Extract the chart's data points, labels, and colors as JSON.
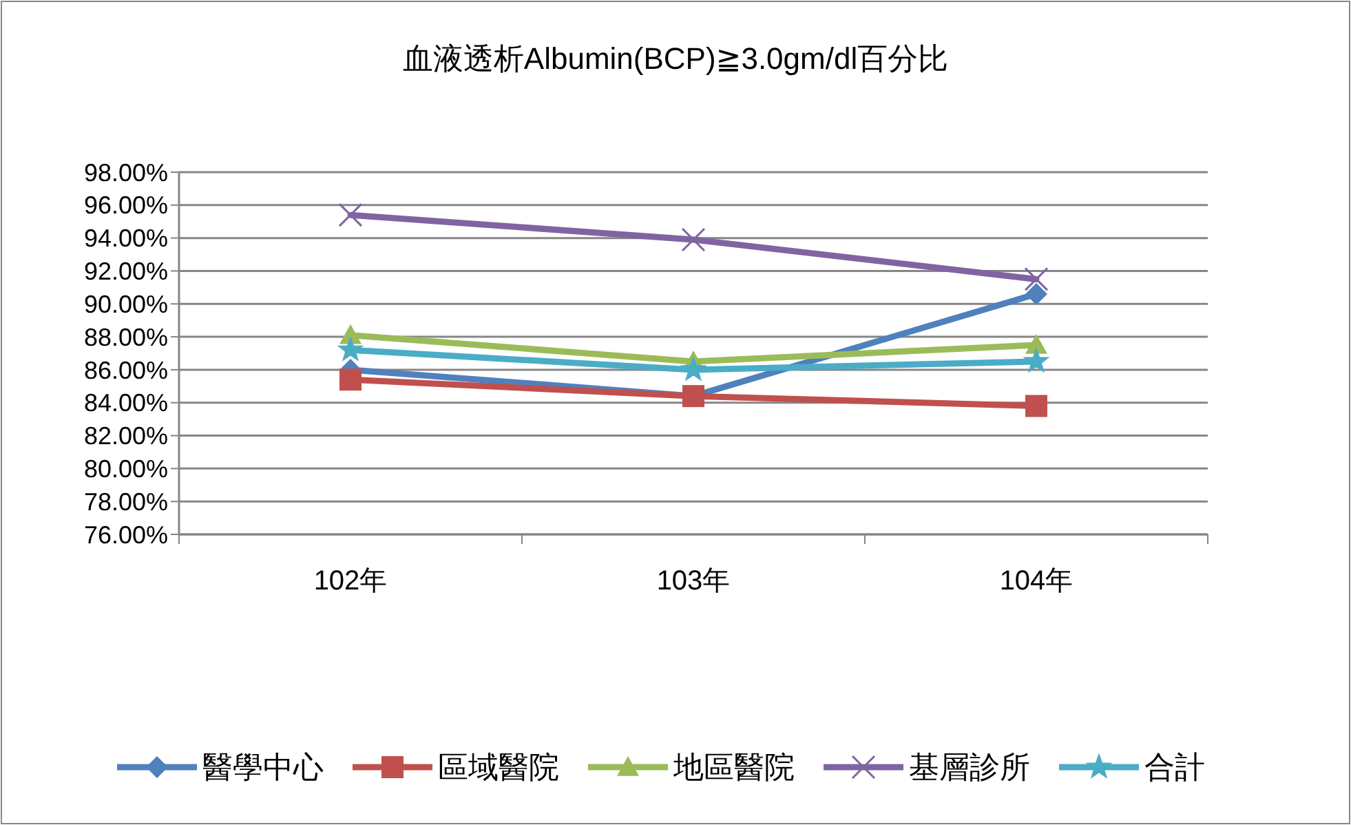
{
  "chart_data": {
    "type": "line",
    "title": "血液透析Albumin(BCP)≧3.0gm/dl百分比",
    "categories": [
      "102年",
      "103年",
      "104年"
    ],
    "series": [
      {
        "name": "醫學中心",
        "color": "#4f81bd",
        "marker": "diamond",
        "values": [
          86.0,
          84.4,
          90.6
        ]
      },
      {
        "name": "區域醫院",
        "color": "#c0504d",
        "marker": "square",
        "values": [
          85.4,
          84.4,
          83.8
        ]
      },
      {
        "name": "地區醫院",
        "color": "#9bbb59",
        "marker": "triangle",
        "values": [
          88.1,
          86.5,
          87.5
        ]
      },
      {
        "name": "基層診所",
        "color": "#8064a2",
        "marker": "cross",
        "values": [
          95.4,
          93.9,
          91.5
        ]
      },
      {
        "name": "合計",
        "color": "#4bacc6",
        "marker": "star",
        "values": [
          87.2,
          86.0,
          86.5
        ]
      }
    ],
    "ylim": [
      76,
      98
    ],
    "yticks": [
      {
        "value": 76,
        "label": "76.00%"
      },
      {
        "value": 78,
        "label": "78.00%"
      },
      {
        "value": 80,
        "label": "80.00%"
      },
      {
        "value": 82,
        "label": "82.00%"
      },
      {
        "value": 84,
        "label": "84.00%"
      },
      {
        "value": 86,
        "label": "86.00%"
      },
      {
        "value": 88,
        "label": "88.00%"
      },
      {
        "value": 90,
        "label": "90.00%"
      },
      {
        "value": 92,
        "label": "92.00%"
      },
      {
        "value": 94,
        "label": "94.00%"
      },
      {
        "value": 96,
        "label": "96.00%"
      },
      {
        "value": 98,
        "label": "98.00%"
      }
    ],
    "grid": "y",
    "legend": "bottom",
    "line_style": "solid"
  }
}
